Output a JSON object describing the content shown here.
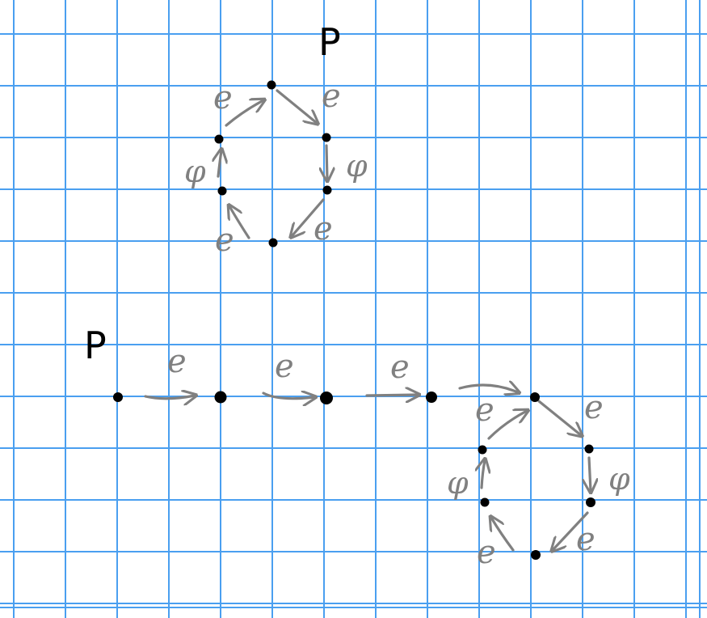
{
  "diagram": {
    "top_cycle": {
      "start_label": "P",
      "edge_labels": [
        "e",
        "φ",
        "e",
        "e",
        "φ",
        "e"
      ]
    },
    "bottom_path": {
      "start_label": "P",
      "tail_labels": [
        "e",
        "e",
        "e"
      ],
      "cycle_edge_labels": [
        "e",
        "φ",
        "e",
        "e",
        "φ",
        "e"
      ]
    }
  },
  "colors": {
    "grid": "#4a9ff0",
    "arrow": "#808080",
    "dot": "#000000",
    "background": "#ffffff"
  }
}
